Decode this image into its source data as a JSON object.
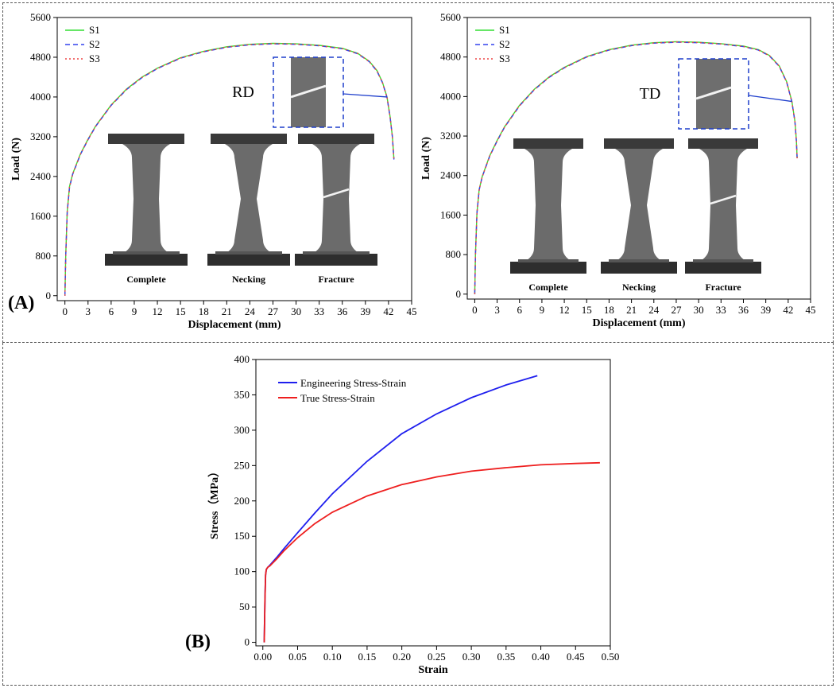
{
  "panels": {
    "a_label": "(A)",
    "b_label": "(B)"
  },
  "chart_data": [
    {
      "type": "line",
      "panel": "A",
      "direction_label": "RD",
      "xlabel": "Displacement (mm)",
      "ylabel": "Load (N)",
      "xlim": [
        -1,
        45
      ],
      "ylim": [
        -100,
        5600
      ],
      "xticks": [
        0,
        3,
        6,
        9,
        12,
        15,
        18,
        21,
        24,
        27,
        30,
        33,
        36,
        39,
        42,
        45
      ],
      "yticks": [
        0,
        800,
        1600,
        2400,
        3200,
        4000,
        4800,
        5600
      ],
      "legend": "top-left",
      "series": [
        {
          "name": "S1",
          "color": "#33dd33",
          "style": "solid",
          "x": [
            0,
            0.1,
            0.3,
            0.6,
            1,
            2,
            3,
            4,
            6,
            8,
            10,
            12,
            15,
            18,
            21,
            24,
            27,
            30,
            33,
            36,
            38,
            39.5,
            40.5,
            41.2,
            41.8,
            42.2,
            42.5,
            42.7
          ],
          "y": [
            0,
            800,
            1700,
            2200,
            2450,
            2850,
            3150,
            3420,
            3840,
            4160,
            4400,
            4580,
            4790,
            4920,
            5010,
            5060,
            5080,
            5070,
            5040,
            4980,
            4880,
            4720,
            4530,
            4300,
            4000,
            3600,
            3200,
            2750
          ]
        },
        {
          "name": "S2",
          "color": "#3344ee",
          "style": "dashed",
          "x": [
            0,
            0.1,
            0.3,
            0.6,
            1,
            2,
            3,
            4,
            6,
            8,
            10,
            12,
            15,
            18,
            21,
            24,
            27,
            30,
            33,
            36,
            38,
            39.5,
            40.5,
            41.2,
            41.8,
            42.2,
            42.5,
            42.7
          ],
          "y": [
            0,
            790,
            1680,
            2180,
            2440,
            2840,
            3140,
            3410,
            3830,
            4150,
            4390,
            4570,
            4780,
            4910,
            5000,
            5050,
            5070,
            5060,
            5030,
            4970,
            4870,
            4710,
            4520,
            4290,
            3990,
            3590,
            3190,
            2740
          ]
        },
        {
          "name": "S3",
          "color": "#ee4444",
          "style": "dotted",
          "x": [
            0,
            0.1,
            0.3,
            0.6,
            1,
            2,
            3,
            4,
            6,
            8,
            10,
            12,
            15,
            18,
            21,
            24,
            27,
            30,
            33,
            36,
            38,
            39.5,
            40.5,
            41.2,
            41.8,
            42.2,
            42.5,
            42.7
          ],
          "y": [
            0,
            780,
            1690,
            2190,
            2445,
            2845,
            3145,
            3415,
            3835,
            4155,
            4395,
            4575,
            4785,
            4915,
            5005,
            5055,
            5075,
            5065,
            5035,
            4975,
            4875,
            4715,
            4525,
            4295,
            3995,
            3595,
            3195,
            2745
          ]
        }
      ],
      "photo_labels": [
        "Complete",
        "Necking",
        "Fracture"
      ]
    },
    {
      "type": "line",
      "panel": "A",
      "direction_label": "TD",
      "xlabel": "Displacement (mm)",
      "ylabel": "Load (N)",
      "xlim": [
        -1,
        45
      ],
      "ylim": [
        -100,
        5600
      ],
      "xticks": [
        0,
        3,
        6,
        9,
        12,
        15,
        18,
        21,
        24,
        27,
        30,
        33,
        36,
        39,
        42,
        45
      ],
      "yticks": [
        0,
        800,
        1600,
        2400,
        3200,
        4000,
        4800,
        5600
      ],
      "legend": "top-left",
      "series": [
        {
          "name": "S1",
          "color": "#33dd33",
          "style": "solid",
          "x": [
            0,
            0.1,
            0.3,
            0.6,
            1,
            2,
            3,
            4,
            6,
            8,
            10,
            12,
            15,
            18,
            21,
            24,
            27,
            30,
            33,
            36,
            38,
            39.5,
            40.8,
            41.8,
            42.5,
            42.9,
            43.1,
            43.2
          ],
          "y": [
            0,
            800,
            1650,
            2120,
            2380,
            2800,
            3110,
            3390,
            3820,
            4150,
            4400,
            4590,
            4810,
            4950,
            5040,
            5090,
            5110,
            5100,
            5070,
            5020,
            4950,
            4830,
            4620,
            4300,
            3900,
            3500,
            3100,
            2750
          ]
        },
        {
          "name": "S2",
          "color": "#3344ee",
          "style": "dashed",
          "x": [
            0,
            0.1,
            0.3,
            0.6,
            1,
            2,
            3,
            4,
            6,
            8,
            10,
            12,
            15,
            18,
            21,
            24,
            27,
            30,
            33,
            36,
            38,
            39.5,
            40.8,
            41.8,
            42.5,
            42.9,
            43.1,
            43.2
          ],
          "y": [
            0,
            790,
            1640,
            2110,
            2370,
            2790,
            3100,
            3380,
            3810,
            4140,
            4390,
            4580,
            4800,
            4940,
            5030,
            5080,
            5100,
            5090,
            5060,
            5010,
            4940,
            4820,
            4610,
            4290,
            3890,
            3490,
            3090,
            2740
          ]
        },
        {
          "name": "S3",
          "color": "#ee4444",
          "style": "dotted",
          "x": [
            0,
            0.1,
            0.3,
            0.6,
            1,
            2,
            3,
            4,
            6,
            8,
            10,
            12,
            15,
            18,
            21,
            24,
            27,
            30,
            33,
            36,
            38,
            39.5,
            40.8,
            41.8,
            42.5,
            42.9,
            43.1,
            43.2
          ],
          "y": [
            0,
            780,
            1645,
            2115,
            2375,
            2795,
            3105,
            3385,
            3815,
            4145,
            4395,
            4585,
            4805,
            4945,
            5035,
            5085,
            5105,
            5095,
            5065,
            5015,
            4945,
            4825,
            4615,
            4295,
            3895,
            3495,
            3095,
            2745
          ]
        }
      ],
      "photo_labels": [
        "Complete",
        "Necking",
        "Fracture"
      ]
    },
    {
      "type": "line",
      "panel": "B",
      "xlabel": "Strain",
      "ylabel": "Stress（MPa）",
      "xlim": [
        -0.01,
        0.5
      ],
      "ylim": [
        -5,
        400
      ],
      "xticks": [
        0.0,
        0.05,
        0.1,
        0.15,
        0.2,
        0.25,
        0.3,
        0.35,
        0.4,
        0.45,
        0.5
      ],
      "xtick_labels": [
        "0.00",
        "0.05",
        "0.10",
        "0.15",
        "0.20",
        "0.25",
        "0.30",
        "0.35",
        "0.40",
        "0.45",
        "0.50"
      ],
      "yticks": [
        0,
        50,
        100,
        150,
        200,
        250,
        300,
        350,
        400
      ],
      "legend": "top-left",
      "series": [
        {
          "name": "Engineering Stress-Strain",
          "color": "#1f1fee",
          "style": "solid",
          "x": [
            0.002,
            0.003,
            0.004,
            0.005,
            0.007,
            0.01,
            0.02,
            0.03,
            0.05,
            0.075,
            0.1,
            0.15,
            0.2,
            0.25,
            0.3,
            0.35,
            0.395
          ],
          "y": [
            0,
            60,
            95,
            103,
            106,
            109,
            120,
            132,
            155,
            183,
            210,
            256,
            295,
            323,
            346,
            364,
            377
          ]
        },
        {
          "name": "True Stress-Strain",
          "color": "#ee1f1f",
          "style": "solid",
          "x": [
            0.002,
            0.003,
            0.004,
            0.005,
            0.007,
            0.01,
            0.02,
            0.03,
            0.05,
            0.075,
            0.1,
            0.15,
            0.2,
            0.25,
            0.3,
            0.35,
            0.4,
            0.45,
            0.485
          ],
          "y": [
            0,
            60,
            95,
            103,
            106,
            108,
            118,
            129,
            148,
            168,
            184,
            207,
            223,
            234,
            242,
            247,
            251,
            253,
            254
          ]
        }
      ]
    }
  ]
}
